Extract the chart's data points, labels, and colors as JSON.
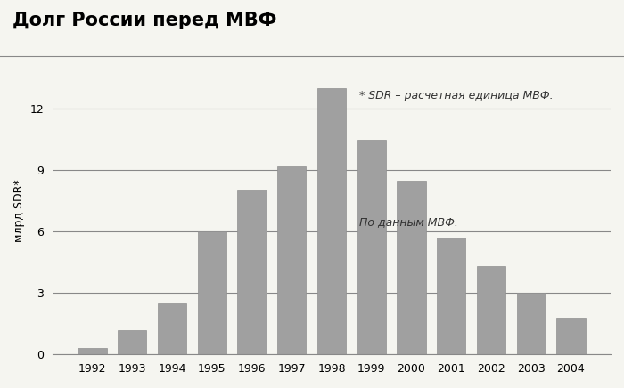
{
  "title": "Долг России перед МВФ",
  "ylabel": "млрд SDR*",
  "years": [
    1992,
    1993,
    1994,
    1995,
    1996,
    1997,
    1998,
    1999,
    2000,
    2001,
    2002,
    2003,
    2004
  ],
  "values": [
    0.3,
    1.2,
    2.5,
    6.0,
    8.0,
    9.2,
    13.0,
    10.5,
    8.5,
    5.7,
    4.3,
    3.0,
    1.8
  ],
  "bar_color": "#a0a0a0",
  "bar_edge_color": "#909090",
  "bg_color": "#f5f5f0",
  "ylim": [
    0,
    14
  ],
  "yticks": [
    0,
    3,
    6,
    9,
    12
  ],
  "grid_color": "#888888",
  "annotation1": "* SDR – расчетная единица МВФ.",
  "annotation2": "По данным МВФ.",
  "title_fontsize": 15,
  "label_fontsize": 9,
  "tick_fontsize": 9,
  "ann_fontsize": 9
}
